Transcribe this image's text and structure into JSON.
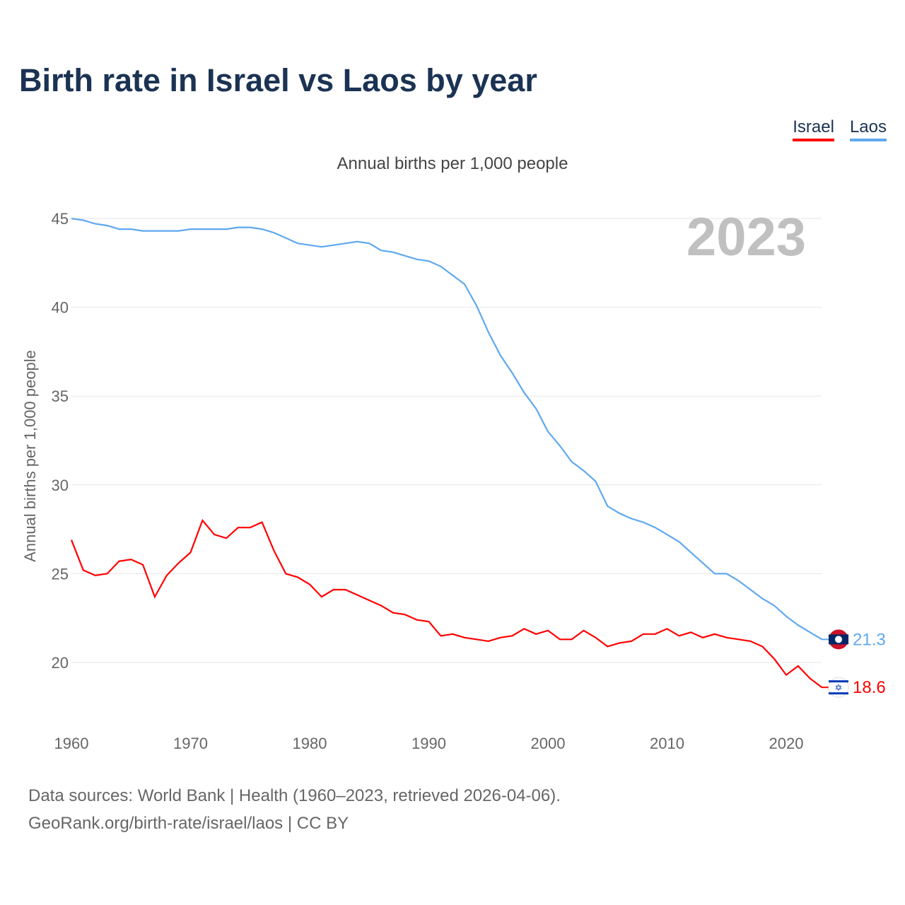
{
  "title": "Birth rate in Israel vs Laos by year",
  "legend": [
    {
      "label": "Israel",
      "color": "#ff0000"
    },
    {
      "label": "Laos",
      "color": "#5fa8ef"
    }
  ],
  "chart_data": {
    "type": "line",
    "title": "Birth rate in Israel vs Laos by year",
    "subtitle": "Annual births per 1,000 people",
    "ylabel": "Annual births per 1,000 people",
    "xlabel": "",
    "year_label": "2023",
    "xlim": [
      1960,
      2023
    ],
    "ylim": [
      17,
      46
    ],
    "yticks": [
      20,
      25,
      30,
      35,
      40,
      45
    ],
    "xticks": [
      1960,
      1970,
      1980,
      1990,
      2000,
      2010,
      2020
    ],
    "grid": true,
    "legend_position": "top-right",
    "x_start": 1960,
    "series": [
      {
        "name": "Israel",
        "color": "#ff0000",
        "end_label": "18.6",
        "values": [
          26.9,
          25.2,
          24.9,
          25.0,
          25.7,
          25.8,
          25.5,
          23.7,
          24.9,
          25.6,
          26.2,
          28.0,
          27.2,
          27.0,
          27.6,
          27.6,
          27.9,
          26.3,
          25.0,
          24.8,
          24.4,
          23.7,
          24.1,
          24.1,
          23.8,
          23.5,
          23.2,
          22.8,
          22.7,
          22.4,
          22.3,
          21.5,
          21.6,
          21.4,
          21.3,
          21.2,
          21.4,
          21.5,
          21.9,
          21.6,
          21.8,
          21.3,
          21.3,
          21.8,
          21.4,
          20.9,
          21.1,
          21.2,
          21.6,
          21.6,
          21.9,
          21.5,
          21.7,
          21.4,
          21.6,
          21.4,
          21.3,
          21.2,
          20.9,
          20.2,
          19.3,
          19.8,
          19.1,
          18.6
        ]
      },
      {
        "name": "Laos",
        "color": "#5fa8ef",
        "end_label": "21.3",
        "values": [
          45.0,
          44.9,
          44.7,
          44.6,
          44.4,
          44.4,
          44.3,
          44.3,
          44.3,
          44.3,
          44.4,
          44.4,
          44.4,
          44.4,
          44.5,
          44.5,
          44.4,
          44.2,
          43.9,
          43.6,
          43.5,
          43.4,
          43.5,
          43.6,
          43.7,
          43.6,
          43.2,
          43.1,
          42.9,
          42.7,
          42.6,
          42.3,
          41.8,
          41.3,
          40.1,
          38.6,
          37.3,
          36.3,
          35.2,
          34.3,
          33.0,
          32.2,
          31.3,
          30.8,
          30.2,
          28.8,
          28.4,
          28.1,
          27.9,
          27.6,
          27.2,
          26.8,
          26.2,
          25.6,
          25.0,
          25.0,
          24.6,
          24.1,
          23.6,
          23.2,
          22.6,
          22.1,
          21.7,
          21.3
        ]
      }
    ]
  },
  "footer": {
    "line1": "Data sources: World Bank | Health (1960–2023, retrieved 2026-04-06).",
    "line2": "GeoRank.org/birth-rate/israel/laos | CC BY"
  }
}
